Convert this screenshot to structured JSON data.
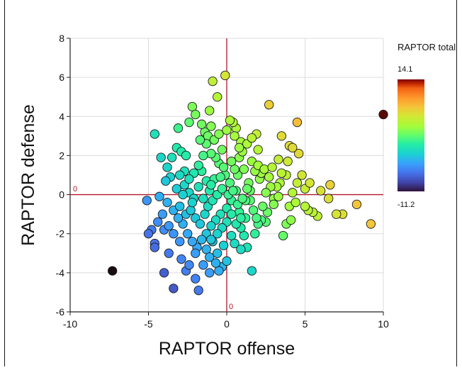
{
  "chart_data": {
    "type": "scatter",
    "xlabel": "RAPTOR offense",
    "ylabel": "RAPTOR defense",
    "xlim": [
      -10,
      10
    ],
    "ylim": [
      -6,
      8
    ],
    "x_ticks": [
      -10,
      -5,
      0,
      5,
      10
    ],
    "y_ticks": [
      -6,
      -4,
      -2,
      0,
      2,
      4,
      6,
      8
    ],
    "grid": true,
    "reference_lines": {
      "x_label": "0",
      "y_label": "0",
      "color": "#b2182b"
    },
    "colorbar": {
      "title": "RAPTOR total",
      "max_label": "14.1",
      "min_label": "-11.2",
      "min": -11.2,
      "max": 14.1,
      "colormap": "turbo"
    },
    "points": [
      [
        -7.3,
        -3.9
      ],
      [
        10.0,
        4.1
      ],
      [
        9.2,
        -1.5
      ],
      [
        8.3,
        -0.5
      ],
      [
        7.4,
        -1.0
      ],
      [
        7.0,
        -1.0
      ],
      [
        6.5,
        -0.2
      ],
      [
        6.6,
        0.5
      ],
      [
        6.0,
        0.2
      ],
      [
        5.8,
        -1.1
      ],
      [
        5.5,
        -0.9
      ],
      [
        5.2,
        -0.8
      ],
      [
        5.0,
        0.3
      ],
      [
        4.8,
        1.0
      ],
      [
        4.6,
        2.1
      ],
      [
        4.5,
        3.7
      ],
      [
        5.3,
        0.6
      ],
      [
        5.0,
        -0.6
      ],
      [
        4.5,
        0.6
      ],
      [
        4.2,
        0.1
      ],
      [
        4.0,
        -0.6
      ],
      [
        3.8,
        -1.5
      ],
      [
        3.6,
        -2.1
      ],
      [
        4.1,
        -1.3
      ],
      [
        4.4,
        -0.4
      ],
      [
        3.4,
        0.6
      ],
      [
        3.3,
        1.8
      ],
      [
        3.5,
        3.0
      ],
      [
        2.7,
        4.6
      ],
      [
        4.0,
        2.5
      ],
      [
        3.8,
        1.0
      ],
      [
        3.5,
        1.1
      ],
      [
        3.2,
        0.4
      ],
      [
        3.0,
        -0.2
      ],
      [
        2.8,
        0.4
      ],
      [
        2.5,
        -1.4
      ],
      [
        2.2,
        -1.3
      ],
      [
        2.0,
        -1.5
      ],
      [
        1.8,
        -2.0
      ],
      [
        2.5,
        0.1
      ],
      [
        2.1,
        0.8
      ],
      [
        2.2,
        1.1
      ],
      [
        2.6,
        -0.9
      ],
      [
        2.0,
        2.3
      ],
      [
        1.9,
        3.1
      ],
      [
        1.6,
        1.7
      ],
      [
        1.8,
        1.2
      ],
      [
        1.4,
        0.6
      ],
      [
        1.5,
        -0.3
      ],
      [
        1.2,
        -1.2
      ],
      [
        1.1,
        -2.1
      ],
      [
        1.3,
        -2.7
      ],
      [
        0.9,
        -1.7
      ],
      [
        0.8,
        -0.9
      ],
      [
        0.6,
        0.2
      ],
      [
        0.7,
        1.0
      ],
      [
        0.8,
        1.9
      ],
      [
        1.0,
        2.2
      ],
      [
        0.9,
        2.7
      ],
      [
        0.6,
        3.4
      ],
      [
        0.4,
        3.7
      ],
      [
        0.2,
        3.8
      ],
      [
        -0.1,
        6.1
      ],
      [
        -0.6,
        5.0
      ],
      [
        -0.9,
        5.8
      ],
      [
        -1.1,
        4.3
      ],
      [
        -1.4,
        3.2
      ],
      [
        -1.2,
        3.0
      ],
      [
        -2.2,
        4.5
      ],
      [
        -2.0,
        4.1
      ],
      [
        -2.4,
        3.7
      ],
      [
        -3.1,
        3.4
      ],
      [
        -4.6,
        3.1
      ],
      [
        -3.2,
        2.4
      ],
      [
        -3.5,
        1.9
      ],
      [
        -2.9,
        2.2
      ],
      [
        -2.6,
        2.0
      ],
      [
        -4.2,
        1.9
      ],
      [
        -3.8,
        1.4
      ],
      [
        -3.6,
        0.9
      ],
      [
        -3.9,
        0.7
      ],
      [
        -3.2,
        0.3
      ],
      [
        -2.7,
        0.5
      ],
      [
        -2.4,
        0.1
      ],
      [
        -2.1,
        -0.2
      ],
      [
        -1.8,
        0.4
      ],
      [
        -1.6,
        1.2
      ],
      [
        -1.3,
        0.7
      ],
      [
        -1.1,
        0.2
      ],
      [
        -0.8,
        0.8
      ],
      [
        -0.5,
        1.6
      ],
      [
        -0.3,
        2.3
      ],
      [
        -0.1,
        1.0
      ],
      [
        0.2,
        0.6
      ],
      [
        0.3,
        -0.3
      ],
      [
        0.0,
        -0.7
      ],
      [
        -0.4,
        -1.0
      ],
      [
        -0.7,
        -1.3
      ],
      [
        -1.0,
        -1.6
      ],
      [
        -1.3,
        -2.0
      ],
      [
        -1.6,
        -2.3
      ],
      [
        -1.9,
        -2.7
      ],
      [
        -2.2,
        -2.4
      ],
      [
        -2.5,
        -2.0
      ],
      [
        -2.8,
        -1.5
      ],
      [
        -3.1,
        -1.2
      ],
      [
        -3.4,
        -0.8
      ],
      [
        -3.8,
        -0.4
      ],
      [
        -4.1,
        -1.0
      ],
      [
        -4.4,
        -1.4
      ],
      [
        -4.8,
        -1.8
      ],
      [
        -5.0,
        -2.0
      ],
      [
        -4.6,
        -2.5
      ],
      [
        -4.6,
        -2.7
      ],
      [
        -4.0,
        -1.8
      ],
      [
        -3.7,
        -1.6
      ],
      [
        -3.4,
        -2.0
      ],
      [
        -3.0,
        -2.4
      ],
      [
        -3.7,
        -3.0
      ],
      [
        -4.0,
        -4.0
      ],
      [
        -3.4,
        -4.8
      ],
      [
        -2.6,
        -3.9
      ],
      [
        -2.0,
        -4.3
      ],
      [
        -1.8,
        -4.9
      ],
      [
        -1.5,
        -3.6
      ],
      [
        -1.3,
        -2.8
      ],
      [
        -0.9,
        -2.4
      ],
      [
        -0.6,
        -3.0
      ],
      [
        -0.3,
        -3.7
      ],
      [
        0.0,
        -3.4
      ],
      [
        0.3,
        -2.1
      ],
      [
        0.6,
        -1.5
      ],
      [
        0.9,
        -1.2
      ],
      [
        1.2,
        -0.3
      ],
      [
        1.5,
        0.2
      ],
      [
        1.7,
        -0.8
      ],
      [
        1.9,
        -1.2
      ],
      [
        2.3,
        -0.6
      ],
      [
        1.6,
        -3.9
      ],
      [
        -0.5,
        -3.9
      ],
      [
        -1.1,
        -4.0
      ],
      [
        -2.9,
        -3.3
      ],
      [
        -5.1,
        -0.3
      ],
      [
        -4.3,
        -0.1
      ],
      [
        -3.0,
        -0.6
      ],
      [
        -2.6,
        -1.0
      ],
      [
        -2.3,
        -0.8
      ],
      [
        -2.0,
        -1.2
      ],
      [
        -1.7,
        -1.5
      ],
      [
        -1.4,
        -1.0
      ],
      [
        -1.2,
        -0.6
      ],
      [
        -0.9,
        -0.3
      ],
      [
        -0.6,
        0.0
      ],
      [
        -0.3,
        0.3
      ],
      [
        0.1,
        0.0
      ],
      [
        0.4,
        0.2
      ],
      [
        0.7,
        -0.5
      ],
      [
        1.0,
        -0.2
      ],
      [
        1.3,
        0.3
      ],
      [
        1.1,
        1.3
      ],
      [
        0.5,
        1.3
      ],
      [
        -0.2,
        1.4
      ],
      [
        -0.7,
        1.9
      ],
      [
        -1.0,
        2.1
      ],
      [
        -1.5,
        2.0
      ],
      [
        -1.8,
        1.5
      ],
      [
        -2.1,
        1.1
      ],
      [
        -2.4,
        0.8
      ],
      [
        -2.7,
        1.2
      ],
      [
        -3.0,
        1.0
      ],
      [
        -2.8,
        0.0
      ],
      [
        -2.2,
        -0.4
      ],
      [
        -1.5,
        -0.2
      ],
      [
        -1.0,
        0.5
      ],
      [
        -0.4,
        0.9
      ],
      [
        0.3,
        1.7
      ],
      [
        0.8,
        2.4
      ],
      [
        1.3,
        2.6
      ],
      [
        1.6,
        2.9
      ],
      [
        -0.8,
        2.8
      ],
      [
        -1.3,
        2.6
      ],
      [
        -1.7,
        2.8
      ],
      [
        -0.5,
        3.1
      ],
      [
        0.0,
        3.3
      ],
      [
        0.5,
        3.0
      ],
      [
        -1.0,
        3.5
      ],
      [
        -1.6,
        3.6
      ],
      [
        0.3,
        -1.0
      ],
      [
        0.0,
        -1.4
      ],
      [
        -0.3,
        -1.7
      ],
      [
        -0.6,
        -2.0
      ],
      [
        -1.0,
        -2.3
      ],
      [
        -0.2,
        -2.6
      ],
      [
        0.5,
        -2.5
      ],
      [
        0.9,
        -2.8
      ],
      [
        -2.0,
        -3.0
      ],
      [
        -2.4,
        -3.6
      ],
      [
        -1.1,
        -3.2
      ],
      [
        -0.7,
        -3.5
      ],
      [
        2.0,
        1.5
      ],
      [
        2.4,
        1.3
      ],
      [
        2.7,
        0.9
      ],
      [
        2.9,
        1.4
      ],
      [
        3.9,
        1.7
      ],
      [
        4.2,
        2.4
      ],
      [
        3.0,
        -0.5
      ],
      [
        3.3,
        -0.1
      ]
    ]
  }
}
